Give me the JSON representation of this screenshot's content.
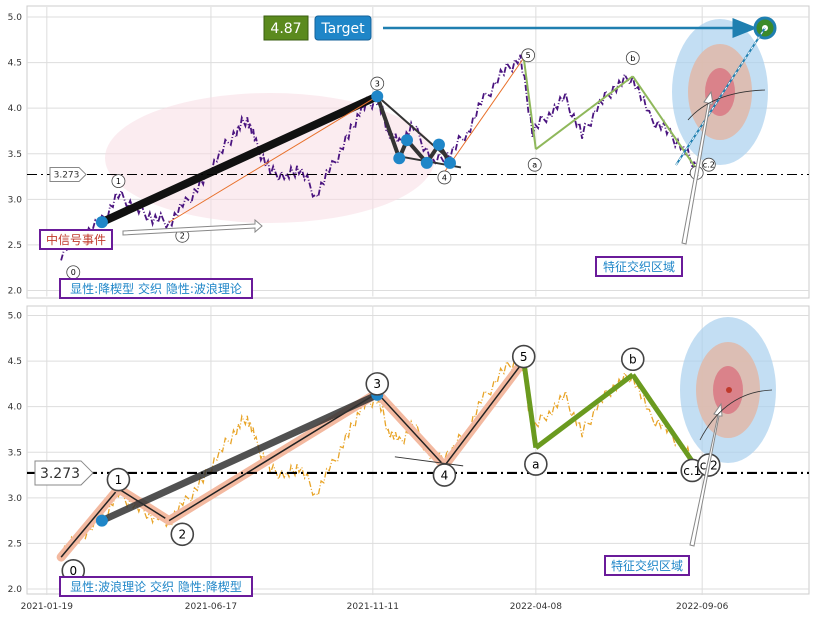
{
  "chart_data": [
    {
      "type": "line",
      "panel": "top",
      "x_range": [
        "2021-01-01",
        "2022-12-12"
      ],
      "ylim": [
        1.95,
        5.15
      ],
      "yticks": [
        "2.0",
        "2.5",
        "3.0",
        "3.5",
        "4.0",
        "4.5",
        "5.0"
      ],
      "grid": true,
      "price_color": "#4b1580",
      "price_points": [
        [
          "2021-02-01",
          2.4
        ],
        [
          "2021-02-20",
          2.6
        ],
        [
          "2021-03-10",
          2.75
        ],
        [
          "2021-03-25",
          3.05
        ],
        [
          "2021-04-10",
          2.9
        ],
        [
          "2021-04-25",
          2.8
        ],
        [
          "2021-05-10",
          2.75
        ],
        [
          "2021-05-25",
          2.95
        ],
        [
          "2021-06-10",
          3.2
        ],
        [
          "2021-06-25",
          3.5
        ],
        [
          "2021-07-10",
          3.75
        ],
        [
          "2021-07-20",
          3.9
        ],
        [
          "2021-07-28",
          3.6
        ],
        [
          "2021-08-10",
          3.3
        ],
        [
          "2021-08-25",
          3.25
        ],
        [
          "2021-09-05",
          3.35
        ],
        [
          "2021-09-20",
          3.05
        ],
        [
          "2021-10-05",
          3.35
        ],
        [
          "2021-10-20",
          3.7
        ],
        [
          "2021-11-01",
          4.0
        ],
        [
          "2021-11-15",
          4.1
        ],
        [
          "2021-11-25",
          3.75
        ],
        [
          "2021-12-05",
          3.6
        ],
        [
          "2021-12-18",
          3.8
        ],
        [
          "2022-01-05",
          3.4
        ],
        [
          "2022-01-20",
          3.5
        ],
        [
          "2022-02-05",
          3.75
        ],
        [
          "2022-02-20",
          4.1
        ],
        [
          "2022-03-10",
          4.4
        ],
        [
          "2022-03-25",
          4.55
        ],
        [
          "2022-04-05",
          3.75
        ],
        [
          "2022-04-20",
          3.95
        ],
        [
          "2022-05-05",
          4.1
        ],
        [
          "2022-05-20",
          3.7
        ],
        [
          "2022-06-05",
          4.05
        ],
        [
          "2022-06-20",
          4.25
        ],
        [
          "2022-07-05",
          4.35
        ],
        [
          "2022-07-20",
          3.9
        ],
        [
          "2022-08-05",
          3.75
        ],
        [
          "2022-08-20",
          3.55
        ],
        [
          "2022-09-01",
          3.35
        ]
      ],
      "reference_line": {
        "value": 3.273,
        "label": "3.273"
      },
      "target": {
        "value": "4.87",
        "label": "Target",
        "value_color": "#5b8a1e",
        "label_color": "#1f86c8",
        "arrow_color": "#1f7fb0"
      },
      "wave_labels": [
        {
          "text": "0",
          "date": "2021-02-12",
          "y": 2.2
        },
        {
          "text": "1",
          "date": "2021-03-25",
          "y": 3.2
        },
        {
          "text": "2",
          "date": "2021-05-22",
          "y": 2.6
        },
        {
          "text": "3",
          "date": "2021-11-15",
          "y": 4.27
        },
        {
          "text": "4",
          "date": "2022-01-15",
          "y": 3.24
        },
        {
          "text": "5",
          "date": "2022-04-01",
          "y": 4.58
        },
        {
          "text": "a",
          "date": "2022-04-07",
          "y": 3.38
        },
        {
          "text": "b",
          "date": "2022-07-05",
          "y": 4.55
        },
        {
          "text": "c",
          "date": "2022-09-01",
          "y": 3.29
        },
        {
          "text": "c.2",
          "date": "2022-09-12",
          "y": 3.38
        }
      ],
      "annotations": {
        "signal_event": "中信号事件",
        "feature_zone": "特征交织区域",
        "legend": "显性:降楔型 交织 隐性:波浪理论"
      }
    },
    {
      "type": "line",
      "panel": "bottom",
      "x_range": [
        "2021-01-01",
        "2022-12-12"
      ],
      "ylim": [
        1.95,
        5.15
      ],
      "yticks": [
        "2.0",
        "2.5",
        "3.0",
        "3.5",
        "4.0",
        "4.5",
        "5.0"
      ],
      "xticks": [
        "2021-01-19",
        "2021-06-17",
        "2021-11-11",
        "2022-04-08",
        "2022-09-06"
      ],
      "grid": true,
      "price_color": "#e8a428",
      "reference_line": {
        "value": 3.273,
        "label": "3.273"
      },
      "wave_points": [
        {
          "text": "0",
          "date": "2021-02-01",
          "y": 2.35
        },
        {
          "text": "1",
          "date": "2021-03-25",
          "y": 3.1
        },
        {
          "text": "2",
          "date": "2021-05-10",
          "y": 2.75
        },
        {
          "text": "3",
          "date": "2021-11-15",
          "y": 4.15
        },
        {
          "text": "4",
          "date": "2022-01-15",
          "y": 3.35
        },
        {
          "text": "5",
          "date": "2022-03-28",
          "y": 4.5
        },
        {
          "text": "a",
          "date": "2022-04-08",
          "y": 3.55
        },
        {
          "text": "b",
          "date": "2022-07-05",
          "y": 4.35
        },
        {
          "text": "c",
          "date": "2022-09-01",
          "y": 3.33
        }
      ],
      "wave_labels": [
        {
          "text": "0",
          "date": "2021-02-12",
          "y": 2.2
        },
        {
          "text": "1",
          "date": "2021-03-25",
          "y": 3.2
        },
        {
          "text": "2",
          "date": "2021-05-22",
          "y": 2.6
        },
        {
          "text": "3",
          "date": "2021-11-15",
          "y": 4.25
        },
        {
          "text": "4",
          "date": "2022-01-15",
          "y": 3.25
        },
        {
          "text": "5",
          "date": "2022-03-28",
          "y": 4.55
        },
        {
          "text": "a",
          "date": "2022-04-08",
          "y": 3.37
        },
        {
          "text": "b",
          "date": "2022-07-05",
          "y": 4.52
        },
        {
          "text": "c.1",
          "date": "2022-08-28",
          "y": 3.3
        },
        {
          "text": "c.2",
          "date": "2022-09-12",
          "y": 3.36
        }
      ],
      "annotations": {
        "feature_zone": "特征交织区域",
        "legend": "显性:波浪理论 交织 隐性:降楔型"
      }
    }
  ]
}
